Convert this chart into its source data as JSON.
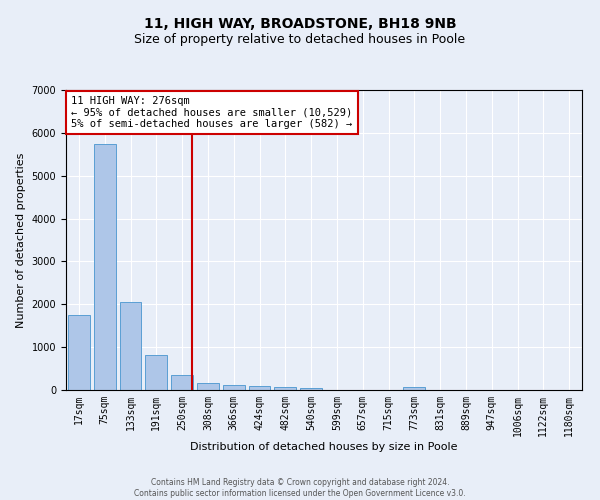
{
  "title": "11, HIGH WAY, BROADSTONE, BH18 9NB",
  "subtitle": "Size of property relative to detached houses in Poole",
  "xlabel": "Distribution of detached houses by size in Poole",
  "ylabel": "Number of detached properties",
  "bar_labels": [
    "17sqm",
    "75sqm",
    "133sqm",
    "191sqm",
    "250sqm",
    "308sqm",
    "366sqm",
    "424sqm",
    "482sqm",
    "540sqm",
    "599sqm",
    "657sqm",
    "715sqm",
    "773sqm",
    "831sqm",
    "889sqm",
    "947sqm",
    "1006sqm",
    "1122sqm",
    "1180sqm"
  ],
  "bar_values": [
    1750,
    5750,
    2050,
    825,
    340,
    175,
    110,
    90,
    80,
    55,
    0,
    0,
    0,
    60,
    0,
    0,
    0,
    0,
    0,
    0
  ],
  "bar_color": "#aec6e8",
  "bar_edgecolor": "#5a9fd4",
  "bar_width": 0.85,
  "ylim": [
    0,
    7000
  ],
  "yticks": [
    0,
    1000,
    2000,
    3000,
    4000,
    5000,
    6000,
    7000
  ],
  "red_line_x": 4.38,
  "red_line_color": "#cc0000",
  "annotation_text": "11 HIGH WAY: 276sqm\n← 95% of detached houses are smaller (10,529)\n5% of semi-detached houses are larger (582) →",
  "annotation_box_color": "#ffffff",
  "annotation_box_edgecolor": "#cc0000",
  "background_color": "#e8eef8",
  "grid_color": "#ffffff",
  "title_fontsize": 10,
  "subtitle_fontsize": 9,
  "axis_label_fontsize": 8,
  "tick_fontsize": 7,
  "footer_text": "Contains HM Land Registry data © Crown copyright and database right 2024.\nContains public sector information licensed under the Open Government Licence v3.0."
}
